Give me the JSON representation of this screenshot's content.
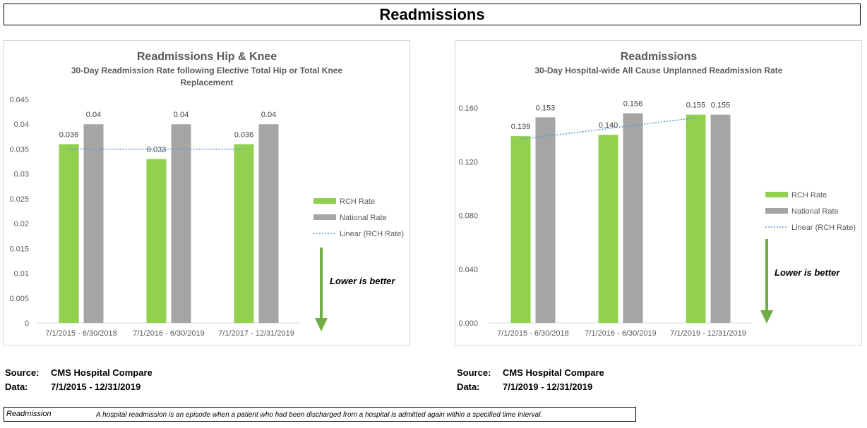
{
  "page_title": "Readmissions",
  "charts": [
    {
      "title": "Readmissions Hip & Knee",
      "subtitle_line1": "30-Day Readmission Rate following Elective Total Hip or Total Knee",
      "subtitle_line2": "Replacement",
      "lower_is_better": "Lower is better",
      "source_label": "Source:",
      "source_value": "CMS Hospital Compare",
      "data_label": "Data:",
      "data_value": "7/1/2015 - 12/31/2019"
    },
    {
      "title": "Readmissions",
      "subtitle_line1": "30-Day Hospital-wide All Cause Unplanned Readmission Rate",
      "subtitle_line2": "",
      "lower_is_better": "Lower is better",
      "source_label": "Source:",
      "source_value": "CMS Hospital Compare",
      "data_label": "Data:",
      "data_value": "7/1/2019 - 12/31/2019"
    }
  ],
  "chart_data": [
    {
      "type": "bar",
      "categories": [
        "7/1/2015 - 6/30/2018",
        "7/1/2016 - 6/30/2019",
        "7/1/2017 - 12/31/2019"
      ],
      "series": [
        {
          "name": "RCH Rate",
          "values": [
            0.036,
            0.033,
            0.036
          ],
          "labels": [
            "0.036",
            "0.033",
            "0.036"
          ],
          "color": "#92d050"
        },
        {
          "name": "National Rate",
          "values": [
            0.04,
            0.04,
            0.04
          ],
          "labels": [
            "0.04",
            "0.04",
            "0.04"
          ],
          "color": "#a5a5a5"
        }
      ],
      "trendline": {
        "name": "Linear (RCH Rate)",
        "color": "#5b9bd5"
      },
      "ylim": [
        0,
        0.045
      ],
      "yticks": [
        "0",
        "0.005",
        "0.01",
        "0.015",
        "0.02",
        "0.025",
        "0.03",
        "0.035",
        "0.04",
        "0.045"
      ],
      "gridlines": false,
      "legend_position": "right"
    },
    {
      "type": "bar",
      "categories": [
        "7/1/2015 - 6/30/2018",
        "7/1/2016 - 6/30/2019",
        "7/1/2019 - 12/31/2019"
      ],
      "series": [
        {
          "name": "RCH Rate",
          "values": [
            0.139,
            0.14,
            0.155
          ],
          "labels": [
            "0.139",
            "0.140",
            "0.155"
          ],
          "color": "#92d050"
        },
        {
          "name": "National Rate",
          "values": [
            0.153,
            0.156,
            0.155
          ],
          "labels": [
            "0.153",
            "0.156",
            "0.155"
          ],
          "color": "#a5a5a5"
        }
      ],
      "trendline": {
        "name": "Linear (RCH Rate)",
        "color": "#5b9bd5"
      },
      "ylim": [
        0,
        0.17
      ],
      "yticks": [
        "0.000",
        "0.040",
        "0.080",
        "0.120",
        "0.160"
      ],
      "gridlines": false,
      "legend_position": "right"
    }
  ],
  "definition": {
    "term": "Readmission",
    "text": "A hospital readmission is an episode when a patient who had been discharged from a hospital is admitted again within a specified time interval."
  }
}
